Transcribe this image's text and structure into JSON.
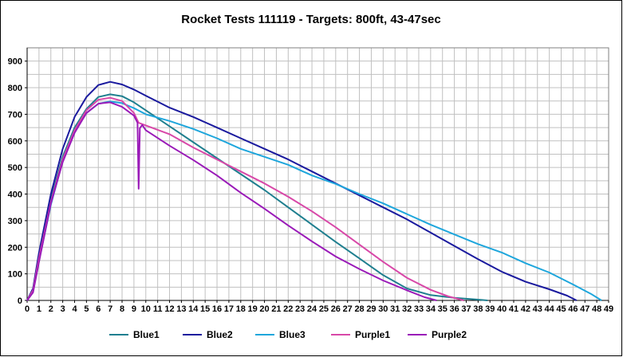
{
  "chart_data": {
    "type": "line",
    "title": "Rocket Tests 111119 - Targets: 800ft, 43-47sec",
    "xlabel": "",
    "ylabel": "",
    "xlim": [
      0,
      49
    ],
    "ylim": [
      0,
      950
    ],
    "x_ticks": [
      "0",
      "1",
      "2",
      "3",
      "4",
      "5",
      "6",
      "7",
      "8",
      "9",
      "10",
      "11",
      "12",
      "13",
      "14",
      "15",
      "16",
      "17",
      "18",
      "19",
      "20",
      "21",
      "22",
      "23",
      "24",
      "25",
      "26",
      "27",
      "28",
      "29",
      "30",
      "31",
      "32",
      "33",
      "34",
      "35",
      "36",
      "37",
      "38",
      "39",
      "40",
      "41",
      "42",
      "43",
      "44",
      "45",
      "46",
      "47",
      "48",
      "49"
    ],
    "y_ticks": [
      "0",
      "100",
      "200",
      "300",
      "400",
      "500",
      "600",
      "700",
      "800",
      "900"
    ],
    "grid": true,
    "legend_position": "bottom",
    "series": [
      {
        "name": "Blue1",
        "color": "#1f7f8f",
        "points": [
          [
            0,
            0
          ],
          [
            0.5,
            40
          ],
          [
            1,
            170
          ],
          [
            2,
            380
          ],
          [
            3,
            540
          ],
          [
            4,
            650
          ],
          [
            5,
            720
          ],
          [
            6,
            765
          ],
          [
            7,
            775
          ],
          [
            8,
            768
          ],
          [
            9,
            745
          ],
          [
            10,
            715
          ],
          [
            12,
            655
          ],
          [
            14,
            595
          ],
          [
            16,
            535
          ],
          [
            18,
            475
          ],
          [
            20,
            415
          ],
          [
            22,
            350
          ],
          [
            24,
            285
          ],
          [
            26,
            220
          ],
          [
            28,
            158
          ],
          [
            30,
            95
          ],
          [
            32,
            45
          ],
          [
            34,
            20
          ],
          [
            36,
            10
          ],
          [
            38,
            3
          ],
          [
            38.8,
            0
          ]
        ]
      },
      {
        "name": "Blue2",
        "color": "#1a1a9e",
        "points": [
          [
            0,
            0
          ],
          [
            0.5,
            45
          ],
          [
            1,
            180
          ],
          [
            2,
            400
          ],
          [
            3,
            570
          ],
          [
            4,
            690
          ],
          [
            5,
            765
          ],
          [
            6,
            810
          ],
          [
            7,
            822
          ],
          [
            8,
            812
          ],
          [
            9,
            793
          ],
          [
            10,
            770
          ],
          [
            12,
            725
          ],
          [
            14,
            690
          ],
          [
            16,
            650
          ],
          [
            18,
            610
          ],
          [
            20,
            570
          ],
          [
            22,
            530
          ],
          [
            24,
            485
          ],
          [
            26,
            440
          ],
          [
            28,
            395
          ],
          [
            30,
            350
          ],
          [
            32,
            305
          ],
          [
            34,
            255
          ],
          [
            36,
            205
          ],
          [
            38,
            155
          ],
          [
            40,
            108
          ],
          [
            42,
            70
          ],
          [
            44,
            42
          ],
          [
            45.5,
            18
          ],
          [
            46.3,
            0
          ]
        ]
      },
      {
        "name": "Blue3",
        "color": "#1ea6dc",
        "points": [
          [
            0,
            0
          ],
          [
            0.5,
            35
          ],
          [
            1,
            150
          ],
          [
            2,
            360
          ],
          [
            3,
            525
          ],
          [
            4,
            635
          ],
          [
            5,
            705
          ],
          [
            6,
            740
          ],
          [
            7,
            748
          ],
          [
            8,
            742
          ],
          [
            9,
            723
          ],
          [
            10,
            700
          ],
          [
            12,
            675
          ],
          [
            14,
            645
          ],
          [
            16,
            610
          ],
          [
            18,
            570
          ],
          [
            20,
            540
          ],
          [
            22,
            510
          ],
          [
            24,
            470
          ],
          [
            26,
            438
          ],
          [
            28,
            400
          ],
          [
            30,
            365
          ],
          [
            32,
            325
          ],
          [
            34,
            285
          ],
          [
            36,
            248
          ],
          [
            38,
            212
          ],
          [
            40,
            180
          ],
          [
            42,
            140
          ],
          [
            44,
            105
          ],
          [
            46,
            60
          ],
          [
            47.5,
            25
          ],
          [
            48.4,
            0
          ]
        ]
      },
      {
        "name": "Purple1",
        "color": "#d848a8",
        "points": [
          [
            0,
            0
          ],
          [
            0.5,
            38
          ],
          [
            1,
            160
          ],
          [
            2,
            370
          ],
          [
            3,
            530
          ],
          [
            4,
            640
          ],
          [
            5,
            715
          ],
          [
            6,
            755
          ],
          [
            7,
            762
          ],
          [
            8,
            750
          ],
          [
            9,
            705
          ],
          [
            9.4,
            668
          ],
          [
            10,
            658
          ],
          [
            12,
            625
          ],
          [
            14,
            575
          ],
          [
            16,
            530
          ],
          [
            18,
            485
          ],
          [
            20,
            440
          ],
          [
            22,
            390
          ],
          [
            24,
            335
          ],
          [
            26,
            275
          ],
          [
            28,
            210
          ],
          [
            30,
            145
          ],
          [
            32,
            85
          ],
          [
            34,
            40
          ],
          [
            35.5,
            15
          ],
          [
            36.8,
            0
          ]
        ]
      },
      {
        "name": "Purple2",
        "color": "#9a1ab8",
        "points": [
          [
            0,
            0
          ],
          [
            0.5,
            30
          ],
          [
            1,
            145
          ],
          [
            2,
            365
          ],
          [
            3,
            520
          ],
          [
            4,
            630
          ],
          [
            5,
            705
          ],
          [
            6,
            740
          ],
          [
            7,
            745
          ],
          [
            8,
            728
          ],
          [
            9,
            695
          ],
          [
            9.3,
            668
          ],
          [
            9.4,
            420
          ],
          [
            9.5,
            648
          ],
          [
            9.7,
            660
          ],
          [
            10,
            640
          ],
          [
            12,
            582
          ],
          [
            14,
            528
          ],
          [
            16,
            470
          ],
          [
            18,
            405
          ],
          [
            20,
            345
          ],
          [
            22,
            282
          ],
          [
            24,
            222
          ],
          [
            26,
            165
          ],
          [
            28,
            118
          ],
          [
            30,
            75
          ],
          [
            32,
            38
          ],
          [
            33.5,
            12
          ],
          [
            34.5,
            0
          ]
        ]
      }
    ]
  }
}
